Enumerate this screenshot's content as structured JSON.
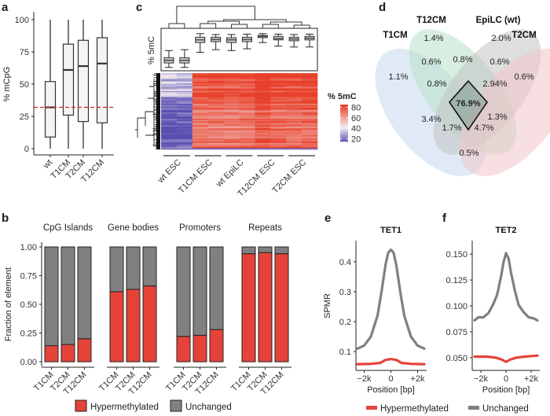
{
  "panels": {
    "a": "a",
    "b": "b",
    "c": "c",
    "d": "d",
    "e": "e",
    "f": "f"
  },
  "chart_data": [
    {
      "id": "a",
      "type": "boxplot",
      "ylabel": "% mCpG",
      "yticks": [
        0,
        25,
        50,
        75,
        100
      ],
      "ylim": [
        0,
        100
      ],
      "categories": [
        "wt",
        "T1CM",
        "T2CM",
        "T12CM"
      ],
      "boxes": [
        {
          "min": 0,
          "q1": 9,
          "median": 32,
          "q3": 52,
          "max": 100
        },
        {
          "min": 0,
          "q1": 26,
          "median": 61,
          "q3": 81,
          "max": 100
        },
        {
          "min": 0,
          "q1": 21,
          "median": 64,
          "q3": 84,
          "max": 100
        },
        {
          "min": 0,
          "q1": 20,
          "median": 66,
          "q3": 86,
          "max": 100
        }
      ],
      "reference_line": 32,
      "reference_color": "#d62728"
    },
    {
      "id": "c",
      "type": "heatmap",
      "boxplot_ylabel": "% 5mC",
      "column_groups": [
        "wt ESC",
        "T1CM ESC",
        "wt EpiLC",
        "T12CM ESC",
        "T2CM ESC"
      ],
      "columns_per_group": 2,
      "column_boxes": [
        {
          "min": 14,
          "q1": 24,
          "median": 30,
          "q3": 36,
          "max": 52
        },
        {
          "min": 14,
          "q1": 24,
          "median": 30,
          "q3": 36,
          "max": 54
        },
        {
          "min": 48,
          "q1": 70,
          "median": 76,
          "q3": 82,
          "max": 90
        },
        {
          "min": 54,
          "q1": 72,
          "median": 77,
          "q3": 82,
          "max": 88
        },
        {
          "min": 52,
          "q1": 70,
          "median": 76,
          "q3": 81,
          "max": 88
        },
        {
          "min": 56,
          "q1": 72,
          "median": 77,
          "q3": 82,
          "max": 89
        },
        {
          "min": 70,
          "q1": 81,
          "median": 84,
          "q3": 86,
          "max": 90
        },
        {
          "min": 62,
          "q1": 76,
          "median": 79,
          "q3": 84,
          "max": 89
        },
        {
          "min": 60,
          "q1": 74,
          "median": 78,
          "q3": 82,
          "max": 88
        },
        {
          "min": 60,
          "q1": 76,
          "median": 80,
          "q3": 84,
          "max": 89
        }
      ],
      "legend_title": "% 5mC",
      "legend_ticks": [
        80,
        60,
        40,
        20
      ],
      "color_low": "#5a4fb0",
      "color_mid": "#f4eef2",
      "color_high": "#e8402a"
    },
    {
      "id": "d",
      "type": "venn",
      "sets": [
        "T1CM",
        "T12CM",
        "EpiLC (wt)",
        "T2CM"
      ],
      "set_colors": [
        "#c6d8ee",
        "#b8e0c8",
        "#c2c2c2",
        "#f2c4c8"
      ],
      "regions": [
        {
          "label": "1.4%"
        },
        {
          "label": "2.0%"
        },
        {
          "label": "1.1%"
        },
        {
          "label": "0.6%"
        },
        {
          "label": "0.6%"
        },
        {
          "label": "0.8%"
        },
        {
          "label": "0.6%"
        },
        {
          "label": "0.8%"
        },
        {
          "label": "2.94%"
        },
        {
          "label": "76.9%"
        },
        {
          "label": "3.4%"
        },
        {
          "label": "1.3%"
        },
        {
          "label": "1.7%"
        },
        {
          "label": "4.7%"
        },
        {
          "label": "0.5%"
        }
      ]
    },
    {
      "id": "b",
      "type": "stacked_bar",
      "ylabel": "Fraction of element",
      "yticks": [
        "0.00",
        "0.25",
        "0.50",
        "0.75",
        "1.00"
      ],
      "ylim": [
        0,
        1
      ],
      "facets": [
        {
          "title": "CpG Islands",
          "categories": [
            "T1CM",
            "T2CM",
            "T12CM"
          ],
          "hyper": [
            0.14,
            0.15,
            0.2
          ]
        },
        {
          "title": "Gene bodies",
          "categories": [
            "T1CM",
            "T2CM",
            "T12CM"
          ],
          "hyper": [
            0.61,
            0.63,
            0.66
          ]
        },
        {
          "title": "Promoters",
          "categories": [
            "T1CM",
            "T2CM",
            "T12CM"
          ],
          "hyper": [
            0.22,
            0.23,
            0.28
          ]
        },
        {
          "title": "Repeats",
          "categories": [
            "T1CM",
            "T2CM",
            "T12CM"
          ],
          "hyper": [
            0.94,
            0.95,
            0.94
          ]
        }
      ],
      "series": [
        {
          "name": "Hypermethylated",
          "color": "#e5433a"
        },
        {
          "name": "Unchanged",
          "color": "#808080"
        }
      ]
    },
    {
      "id": "e",
      "type": "line",
      "title": "TET1",
      "xlabel": "Position [bp]",
      "ylabel": "SPMR",
      "xticks": [
        "−2k",
        "0",
        "+2k"
      ],
      "xlim": [
        -2500,
        2500
      ],
      "ylim": [
        0.045,
        0.46
      ],
      "yticks": [
        "0.1",
        "0.2",
        "0.3",
        "0.4"
      ],
      "ytick_values": [
        0.1,
        0.2,
        0.3,
        0.4
      ],
      "series": [
        {
          "name": "Unchanged",
          "color": "#808080",
          "x": [
            -2500,
            -2000,
            -1500,
            -1000,
            -700,
            -400,
            -200,
            0,
            200,
            400,
            700,
            1000,
            1500,
            2000,
            2500
          ],
          "y": [
            0.11,
            0.12,
            0.15,
            0.22,
            0.3,
            0.39,
            0.43,
            0.44,
            0.43,
            0.39,
            0.3,
            0.22,
            0.15,
            0.12,
            0.11
          ]
        },
        {
          "name": "Hypermethylated",
          "color": "#e5433a",
          "x": [
            -2500,
            -1500,
            -800,
            -400,
            0,
            400,
            800,
            1500,
            2500
          ],
          "y": [
            0.058,
            0.059,
            0.062,
            0.072,
            0.075,
            0.072,
            0.062,
            0.059,
            0.058
          ]
        }
      ]
    },
    {
      "id": "f",
      "type": "line",
      "title": "TET2",
      "xlabel": "Position [bp]",
      "ylabel": "",
      "xticks": [
        "−2k",
        "0",
        "+2k"
      ],
      "xlim": [
        -2500,
        2500
      ],
      "ylim": [
        0.04,
        0.16
      ],
      "yticks": [
        "0.050",
        "0.075",
        "0.100",
        "0.125",
        "0.150"
      ],
      "ytick_values": [
        0.05,
        0.075,
        0.1,
        0.125,
        0.15
      ],
      "series": [
        {
          "name": "Unchanged",
          "color": "#808080",
          "x": [
            -2500,
            -2200,
            -1800,
            -1400,
            -1000,
            -700,
            -400,
            -200,
            0,
            200,
            400,
            700,
            1000,
            1400,
            1800,
            2200,
            2500
          ],
          "y": [
            0.086,
            0.089,
            0.089,
            0.093,
            0.102,
            0.111,
            0.128,
            0.142,
            0.151,
            0.146,
            0.132,
            0.115,
            0.101,
            0.094,
            0.089,
            0.088,
            0.086
          ]
        },
        {
          "name": "Hypermethylated",
          "color": "#e5433a",
          "x": [
            -2500,
            -1500,
            -800,
            -300,
            0,
            300,
            800,
            1500,
            2500
          ],
          "y": [
            0.051,
            0.051,
            0.05,
            0.048,
            0.046,
            0.048,
            0.05,
            0.051,
            0.052
          ]
        }
      ]
    }
  ],
  "legends": {
    "b": [
      "Hypermethylated",
      "Unchanged"
    ],
    "ef": [
      "Hypermethylated",
      "Unchanged"
    ]
  }
}
